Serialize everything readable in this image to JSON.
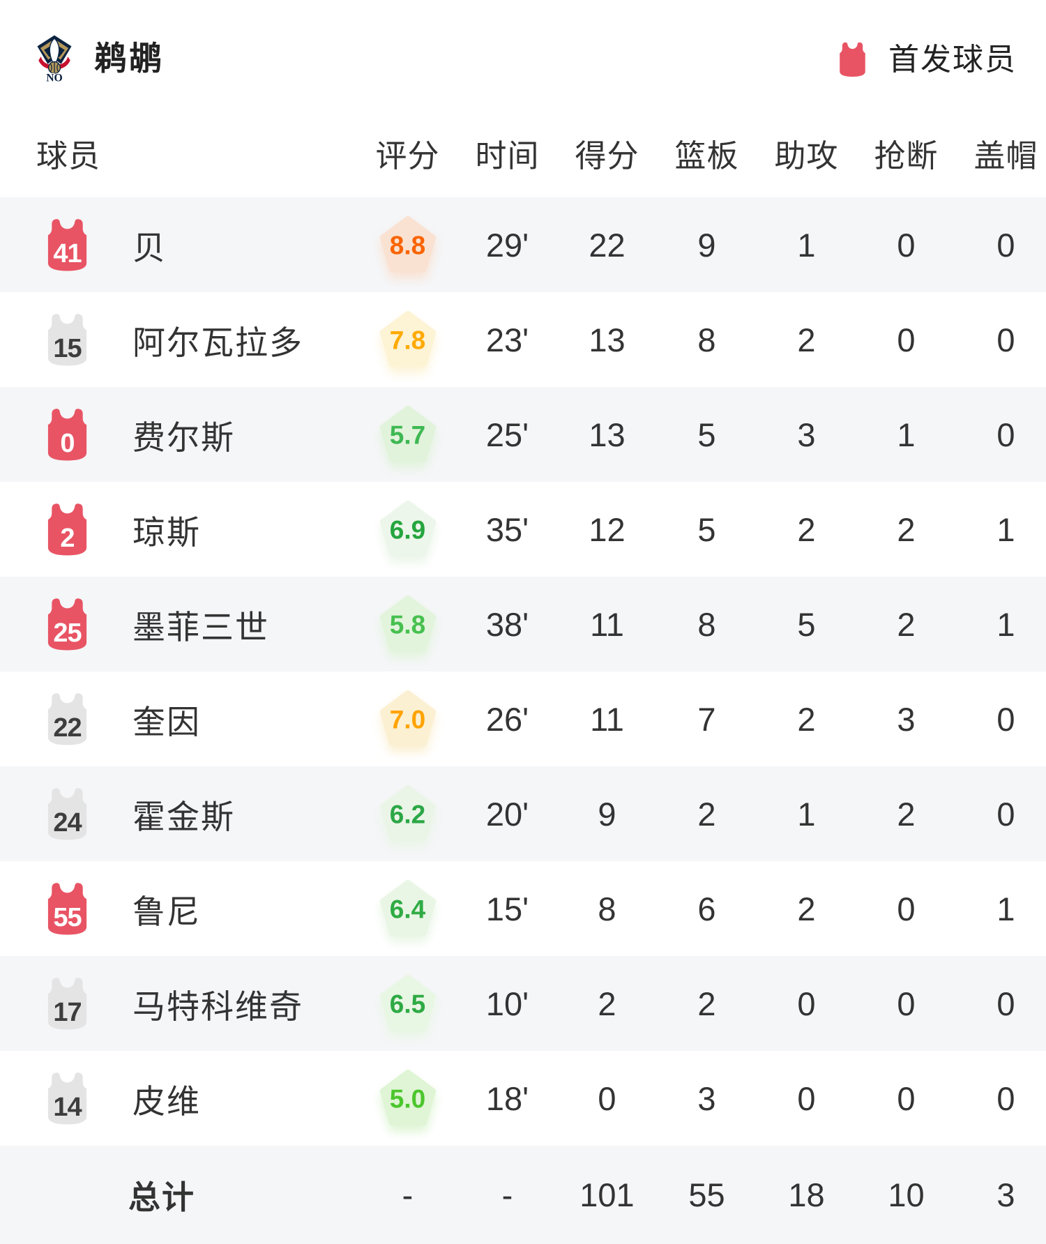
{
  "header": {
    "team_name": "鹈鹕",
    "legend_label": "首发球员"
  },
  "table": {
    "columns": [
      "球员",
      "评分",
      "时间",
      "得分",
      "篮板",
      "助攻",
      "抢断",
      "盖帽"
    ],
    "players": [
      {
        "number": "41",
        "starter": true,
        "name": "贝",
        "rating": "8.8",
        "rating_text": "#fa6400",
        "rating_bg": "#f9e2d2",
        "time": "29'",
        "points": "22",
        "rebounds": "9",
        "assists": "1",
        "steals": "0",
        "blocks": "0"
      },
      {
        "number": "15",
        "starter": false,
        "name": "阿尔瓦拉多",
        "rating": "7.8",
        "rating_text": "#ffaa00",
        "rating_bg": "#fdf3d5",
        "time": "23'",
        "points": "13",
        "rebounds": "8",
        "assists": "2",
        "steals": "0",
        "blocks": "0"
      },
      {
        "number": "0",
        "starter": true,
        "name": "费尔斯",
        "rating": "5.7",
        "rating_text": "#3eb852",
        "rating_bg": "#e1f3db",
        "time": "25'",
        "points": "13",
        "rebounds": "5",
        "assists": "3",
        "steals": "1",
        "blocks": "0"
      },
      {
        "number": "2",
        "starter": true,
        "name": "琼斯",
        "rating": "6.9",
        "rating_text": "#25a53e",
        "rating_bg": "#ecf6ea",
        "time": "35'",
        "points": "12",
        "rebounds": "5",
        "assists": "2",
        "steals": "2",
        "blocks": "1"
      },
      {
        "number": "25",
        "starter": true,
        "name": "墨菲三世",
        "rating": "5.8",
        "rating_text": "#47c04f",
        "rating_bg": "#e2f4dc",
        "time": "38'",
        "points": "11",
        "rebounds": "8",
        "assists": "5",
        "steals": "2",
        "blocks": "1"
      },
      {
        "number": "22",
        "starter": false,
        "name": "奎因",
        "rating": "7.0",
        "rating_text": "#ffa300",
        "rating_bg": "#fcf0d3",
        "time": "26'",
        "points": "11",
        "rebounds": "7",
        "assists": "2",
        "steals": "3",
        "blocks": "0"
      },
      {
        "number": "24",
        "starter": false,
        "name": "霍金斯",
        "rating": "6.2",
        "rating_text": "#2ca746",
        "rating_bg": "#eaf5e7",
        "time": "20'",
        "points": "9",
        "rebounds": "2",
        "assists": "1",
        "steals": "2",
        "blocks": "0"
      },
      {
        "number": "55",
        "starter": true,
        "name": "鲁尼",
        "rating": "6.4",
        "rating_text": "#30ab44",
        "rating_bg": "#e9f6e5",
        "time": "15'",
        "points": "8",
        "rebounds": "6",
        "assists": "2",
        "steals": "0",
        "blocks": "1"
      },
      {
        "number": "17",
        "starter": false,
        "name": "马特科维奇",
        "rating": "6.5",
        "rating_text": "#2eaa43",
        "rating_bg": "#e8f6e4",
        "time": "10'",
        "points": "2",
        "rebounds": "2",
        "assists": "0",
        "steals": "0",
        "blocks": "0"
      },
      {
        "number": "14",
        "starter": false,
        "name": "皮维",
        "rating": "5.0",
        "rating_text": "#4cc62e",
        "rating_bg": "#dff5d5",
        "time": "18'",
        "points": "0",
        "rebounds": "3",
        "assists": "0",
        "steals": "0",
        "blocks": "0"
      }
    ],
    "totals": {
      "label": "总计",
      "rating": "-",
      "time": "-",
      "points": "101",
      "rebounds": "55",
      "assists": "18",
      "steals": "10",
      "blocks": "3"
    }
  },
  "colors": {
    "starter_jersey": "#e85464",
    "bench_jersey": "#e4e4e5",
    "row_alt_bg": "#f5f6f8",
    "logo_navy": "#0c2340",
    "logo_gold": "#b5985a",
    "logo_red": "#c8102e"
  }
}
